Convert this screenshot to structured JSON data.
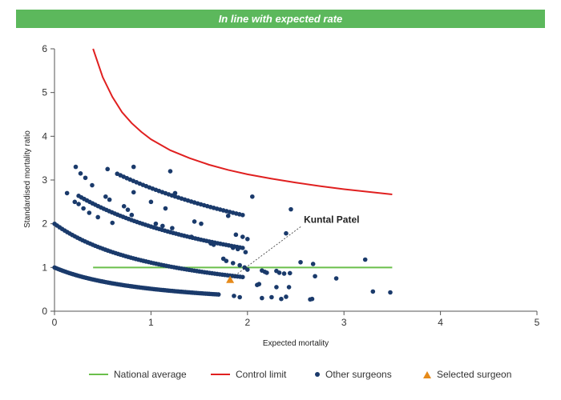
{
  "banner": {
    "text": "In line with expected rate",
    "color": "#5cb85c"
  },
  "chart_data": {
    "type": "scatter",
    "title": "In line with expected rate",
    "xlabel": "Expected mortality",
    "ylabel": "Standardised mortality ratio",
    "xlim": [
      0,
      5
    ],
    "ylim": [
      0,
      6
    ],
    "xticks": [
      "0",
      "1",
      "2",
      "3",
      "4",
      "5"
    ],
    "yticks": [
      "0",
      "1",
      "2",
      "3",
      "4",
      "5",
      "6"
    ],
    "grid": false,
    "legend_position": "bottom",
    "series": [
      {
        "name": "National average",
        "kind": "line",
        "color": "#6abf4b",
        "x": [
          0.4,
          3.5
        ],
        "y": [
          1,
          1
        ]
      },
      {
        "name": "Control limit",
        "kind": "line",
        "color": "#e02020",
        "x": [
          0.4,
          0.5,
          0.6,
          0.7,
          0.8,
          0.9,
          1.0,
          1.2,
          1.4,
          1.6,
          1.8,
          2.0,
          2.25,
          2.5,
          2.75,
          3.0,
          3.25,
          3.5
        ],
        "y": [
          6.0,
          5.35,
          4.9,
          4.55,
          4.3,
          4.1,
          3.93,
          3.68,
          3.5,
          3.35,
          3.23,
          3.13,
          3.03,
          2.94,
          2.86,
          2.79,
          2.73,
          2.67
        ]
      },
      {
        "name": "Other surgeons",
        "kind": "scatter",
        "color": "#1a3a6b",
        "x": [
          0.22,
          0.27,
          0.32,
          0.39,
          0.55,
          0.82,
          1.2,
          0.13,
          0.21,
          0.25,
          0.3,
          0.36,
          0.45,
          0.53,
          0.57,
          0.6,
          0.72,
          0.76,
          0.8,
          0.82,
          1.0,
          1.05,
          1.12,
          1.15,
          1.22,
          1.25,
          1.42,
          1.45,
          1.52,
          1.62,
          1.65,
          1.8,
          1.85,
          1.88,
          1.95,
          2.05,
          2.45,
          2.4,
          2.0,
          1.98,
          1.9,
          1.75,
          1.78,
          1.85,
          1.92,
          1.97,
          2.0,
          2.15,
          2.18,
          2.2,
          2.3,
          2.33,
          2.38,
          2.44,
          2.55,
          2.68,
          2.7,
          2.92,
          3.22,
          3.3,
          3.48,
          1.86,
          1.92,
          2.1,
          2.12,
          2.15,
          2.25,
          2.3,
          2.35,
          2.4,
          2.43,
          2.65,
          2.67
        ],
        "y": [
          3.3,
          3.15,
          3.05,
          2.88,
          3.25,
          3.3,
          3.2,
          2.7,
          2.5,
          2.45,
          2.35,
          2.25,
          2.15,
          2.62,
          2.55,
          2.02,
          2.4,
          2.32,
          2.2,
          2.72,
          2.5,
          2.0,
          1.95,
          2.35,
          1.9,
          2.7,
          1.7,
          2.05,
          2.0,
          1.55,
          1.52,
          2.18,
          1.45,
          1.75,
          1.7,
          2.62,
          2.33,
          1.78,
          1.65,
          1.35,
          1.42,
          1.2,
          1.15,
          1.1,
          1.05,
          1.0,
          0.95,
          0.93,
          0.9,
          0.88,
          0.92,
          0.88,
          0.86,
          0.87,
          1.12,
          1.08,
          0.8,
          0.75,
          1.18,
          0.45,
          0.43,
          0.35,
          0.32,
          0.6,
          0.62,
          0.3,
          0.32,
          0.55,
          0.28,
          0.33,
          0.55,
          0.27,
          0.28
        ]
      },
      {
        "name": "Selected surgeon",
        "kind": "scatter",
        "color": "#e68a1a",
        "x": [
          1.82
        ],
        "y": [
          0.7
        ]
      }
    ],
    "dense_curves": [
      {
        "series": "Other surgeons",
        "deaths": 1,
        "x_from": 0.0,
        "x_to": 1.7,
        "count": 90
      },
      {
        "series": "Other surgeons",
        "deaths": 2,
        "x_from": 0.0,
        "x_to": 1.95,
        "count": 75
      },
      {
        "series": "Other surgeons",
        "deaths": 3,
        "x_from": 0.25,
        "x_to": 1.95,
        "count": 60
      },
      {
        "series": "Other surgeons",
        "deaths": 4,
        "x_from": 0.65,
        "x_to": 1.95,
        "count": 40
      }
    ],
    "annotations": [
      {
        "text": "Kuntal Patel",
        "x": 1.82,
        "y": 0.7
      }
    ]
  },
  "legend": [
    {
      "label": "National average",
      "symbol": "line",
      "color": "#6abf4b"
    },
    {
      "label": "Control limit",
      "symbol": "line",
      "color": "#e02020"
    },
    {
      "label": "Other surgeons",
      "symbol": "dot",
      "color": "#1a3a6b"
    },
    {
      "label": "Selected surgeon",
      "symbol": "triangle",
      "color": "#e68a1a"
    }
  ]
}
